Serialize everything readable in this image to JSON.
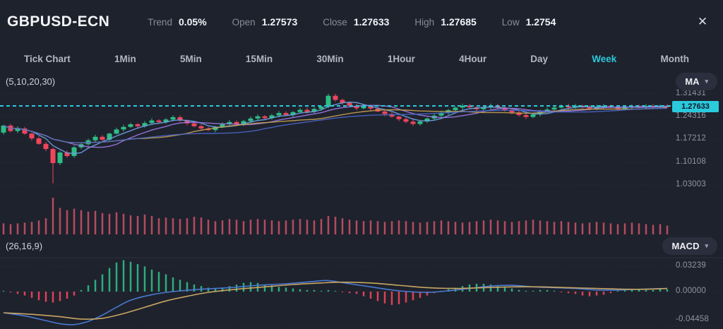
{
  "header": {
    "symbol": "GBPUSD-ECN",
    "stats": [
      {
        "label": "Trend",
        "value": "0.05%"
      },
      {
        "label": "Open",
        "value": "1.27573"
      },
      {
        "label": "Close",
        "value": "1.27633"
      },
      {
        "label": "High",
        "value": "1.27685"
      },
      {
        "label": "Low",
        "value": "1.2754"
      }
    ]
  },
  "icons": {
    "close": "✕",
    "dropdown": "▾"
  },
  "tabs": {
    "items": [
      "Tick Chart",
      "1Min",
      "5Min",
      "15Min",
      "30Min",
      "1Hour",
      "4Hour",
      "Day",
      "Week",
      "Month"
    ],
    "active": "Week"
  },
  "price_pane": {
    "params_label": "(5,10,20,30)",
    "button_label": "MA"
  },
  "macd_pane": {
    "params_label": "(26,16,9)",
    "button_label": "MACD"
  },
  "colors": {
    "background": "#1e222d",
    "accent_cyan": "#2bc9dc",
    "candle_up": "#2ebd85",
    "candle_down": "#f0455c",
    "volume_bar": "#d9566b",
    "hist_up": "#2ebd85",
    "hist_down": "#f0455c",
    "macd_line": "#4a78d1",
    "signal_line": "#c8a662",
    "ma_colors": [
      "#6ea6e8",
      "#9d7be8",
      "#c8a250",
      "#4a66c8"
    ],
    "grid": "rgba(255,255,255,0.07)"
  },
  "chart_data": {
    "type": "candlestick+volume+macd",
    "symbol": "GBPUSD-ECN",
    "timeframe": "Week",
    "summary": {
      "trend_pct": "0.05%",
      "open": 1.27573,
      "close": 1.27633,
      "high": 1.27685,
      "low": 1.2754
    },
    "price_axis": {
      "ticks": [
        {
          "text": "1.31431",
          "value": 1.31431
        },
        {
          "text": "1.24316",
          "value": 1.24316
        },
        {
          "text": "1.17212",
          "value": 1.17212
        },
        {
          "text": "1.10108",
          "value": 1.10108
        },
        {
          "text": "1.03003",
          "value": 1.03003
        }
      ],
      "last_price": {
        "text": "1.27633",
        "value": 1.27633
      }
    },
    "moving_averages": {
      "periods": [
        5,
        10,
        20,
        30
      ]
    },
    "candles": {
      "first_open": 1.193,
      "closes": [
        1.215,
        1.198,
        1.206,
        1.19,
        1.175,
        1.158,
        1.142,
        1.098,
        1.131,
        1.12,
        1.147,
        1.157,
        1.169,
        1.18,
        1.171,
        1.19,
        1.203,
        1.211,
        1.219,
        1.213,
        1.223,
        1.231,
        1.226,
        1.234,
        1.241,
        1.231,
        1.222,
        1.213,
        1.206,
        1.201,
        1.211,
        1.219,
        1.226,
        1.219,
        1.229,
        1.237,
        1.244,
        1.238,
        1.247,
        1.254,
        1.248,
        1.257,
        1.264,
        1.258,
        1.267,
        1.274,
        1.308,
        1.295,
        1.286,
        1.277,
        1.269,
        1.276,
        1.268,
        1.259,
        1.251,
        1.243,
        1.235,
        1.227,
        1.22,
        1.228,
        1.237,
        1.246,
        1.255,
        1.263,
        1.271,
        1.277,
        1.272,
        1.266,
        1.272,
        1.277,
        1.271,
        1.264,
        1.256,
        1.248,
        1.242,
        1.25,
        1.258,
        1.265,
        1.271,
        1.276,
        1.272,
        1.277,
        1.273,
        1.268,
        1.273,
        1.277,
        1.272,
        1.267,
        1.272,
        1.276,
        1.272,
        1.276,
        1.273,
        1.277,
        1.27633
      ],
      "wick_overrides": {
        "7": {
          "low": 1.035
        },
        "46": {
          "high": 1.3143
        }
      }
    },
    "volumes": [
      30,
      28,
      30,
      32,
      34,
      38,
      44,
      100,
      72,
      66,
      70,
      66,
      62,
      64,
      58,
      56,
      60,
      56,
      52,
      50,
      54,
      50,
      44,
      46,
      44,
      42,
      44,
      48,
      46,
      40,
      36,
      38,
      42,
      40,
      36,
      40,
      42,
      40,
      38,
      36,
      38,
      40,
      42,
      40,
      38,
      42,
      50,
      48,
      44,
      40,
      38,
      36,
      38,
      36,
      34,
      36,
      38,
      36,
      34,
      32,
      34,
      36,
      38,
      36,
      34,
      32,
      34,
      36,
      38,
      40,
      38,
      36,
      34,
      36,
      38,
      40,
      38,
      36,
      34,
      36,
      34,
      32,
      30,
      32,
      34,
      32,
      30,
      28,
      30,
      32,
      30,
      28,
      26,
      28,
      24
    ],
    "macd": {
      "axis_ticks": [
        {
          "text": "0.03239",
          "value": 0.03239
        },
        {
          "text": "0.00000",
          "value": 0
        },
        {
          "text": "-0.04458",
          "value": -0.04458
        }
      ],
      "histogram": [
        0.001,
        -0.001,
        -0.003,
        -0.005,
        -0.008,
        -0.011,
        -0.013,
        -0.014,
        -0.012,
        -0.009,
        -0.005,
        0.002,
        0.008,
        0.015,
        0.022,
        0.03,
        0.037,
        0.04,
        0.038,
        0.035,
        0.032,
        0.028,
        0.025,
        0.022,
        0.018,
        0.015,
        0.012,
        0.009,
        0.007,
        0.005,
        0.004,
        0.005,
        0.007,
        0.009,
        0.011,
        0.012,
        0.011,
        0.009,
        0.008,
        0.006,
        0.005,
        0.004,
        0.003,
        0.002,
        0.002,
        0.001,
        0.002,
        0.001,
        -0.001,
        -0.002,
        -0.003,
        -0.006,
        -0.009,
        -0.012,
        -0.015,
        -0.017,
        -0.016,
        -0.014,
        -0.011,
        -0.008,
        -0.005,
        -0.002,
        0.001,
        0.003,
        0.005,
        0.007,
        0.009,
        0.01,
        0.01,
        0.009,
        0.008,
        0.006,
        0.004,
        0.002,
        0.001,
        0.001,
        0.002,
        0.002,
        0.001,
        -0.001,
        -0.002,
        -0.003,
        -0.005,
        -0.006,
        -0.005,
        -0.004,
        -0.002,
        0.001,
        0.002,
        0.003,
        0.003,
        0.002,
        0.002,
        0.003,
        0.003
      ],
      "macd_line": [
        [
          0,
          -0.027
        ],
        [
          3,
          -0.031
        ],
        [
          6,
          -0.037
        ],
        [
          8,
          -0.041
        ],
        [
          10,
          -0.042
        ],
        [
          12,
          -0.038
        ],
        [
          14,
          -0.03
        ],
        [
          16,
          -0.02
        ],
        [
          18,
          -0.011
        ],
        [
          21,
          -0.004
        ],
        [
          24,
          0.0
        ],
        [
          28,
          0.003
        ],
        [
          32,
          0.005
        ],
        [
          36,
          0.008
        ],
        [
          40,
          0.01
        ],
        [
          44,
          0.013
        ],
        [
          46,
          0.014
        ],
        [
          49,
          0.01
        ],
        [
          52,
          0.006
        ],
        [
          56,
          0.001
        ],
        [
          60,
          -0.001
        ],
        [
          63,
          0.001
        ],
        [
          66,
          0.004
        ],
        [
          69,
          0.007
        ],
        [
          72,
          0.008
        ],
        [
          75,
          0.006
        ],
        [
          78,
          0.005
        ],
        [
          81,
          0.004
        ],
        [
          84,
          0.002
        ],
        [
          87,
          0.002
        ],
        [
          90,
          0.003
        ],
        [
          94,
          0.004
        ]
      ],
      "signal_line": [
        [
          0,
          -0.027
        ],
        [
          4,
          -0.029
        ],
        [
          8,
          -0.032
        ],
        [
          11,
          -0.035
        ],
        [
          14,
          -0.034
        ],
        [
          17,
          -0.028
        ],
        [
          20,
          -0.02
        ],
        [
          23,
          -0.012
        ],
        [
          26,
          -0.006
        ],
        [
          29,
          -0.001
        ],
        [
          33,
          0.003
        ],
        [
          37,
          0.006
        ],
        [
          41,
          0.009
        ],
        [
          45,
          0.011
        ],
        [
          48,
          0.012
        ],
        [
          52,
          0.011
        ],
        [
          56,
          0.008
        ],
        [
          60,
          0.005
        ],
        [
          64,
          0.004
        ],
        [
          68,
          0.005
        ],
        [
          72,
          0.006
        ],
        [
          76,
          0.006
        ],
        [
          80,
          0.005
        ],
        [
          84,
          0.004
        ],
        [
          88,
          0.003
        ],
        [
          91,
          0.003
        ],
        [
          94,
          0.004
        ]
      ]
    }
  }
}
